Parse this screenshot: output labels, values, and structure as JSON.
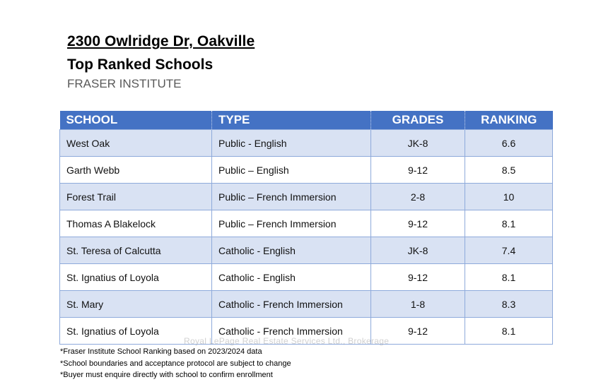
{
  "header": {
    "address": "2300 Owlridge Dr, Oakville",
    "subtitle": "Top Ranked Schools",
    "source": "FRASER INSTITUTE"
  },
  "table": {
    "headers": [
      "SCHOOL",
      "TYPE",
      "GRADES",
      "RANKING"
    ],
    "rows": [
      [
        "West Oak",
        "Public - English",
        "JK-8",
        "6.6"
      ],
      [
        "Garth Webb",
        "Public – English",
        "9-12",
        "8.5"
      ],
      [
        "Forest Trail",
        "Public – French Immersion",
        "2-8",
        "10"
      ],
      [
        "Thomas A Blakelock",
        "Public – French Immersion",
        "9-12",
        "8.1"
      ],
      [
        "St. Teresa of Calcutta",
        "Catholic - English",
        "JK-8",
        "7.4"
      ],
      [
        "St. Ignatius of Loyola",
        "Catholic - English",
        "9-12",
        "8.1"
      ],
      [
        "St. Mary",
        "Catholic - French Immersion",
        "1-8",
        "8.3"
      ],
      [
        "St. Ignatius of Loyola",
        "Catholic - French Immersion",
        "9-12",
        "8.1"
      ]
    ]
  },
  "watermark": "Royal LePage Real Estate Services Ltd., Brokerage",
  "notes": [
    "*Fraser Institute School Ranking based on 2023/2024 data",
    "*School boundaries and acceptance protocol are subject to change",
    "*Buyer must enquire directly with school to confirm enrollment"
  ],
  "colors": {
    "header_bg": "#4472c4",
    "row_shade": "#d9e2f3",
    "border": "#8eaadb"
  }
}
